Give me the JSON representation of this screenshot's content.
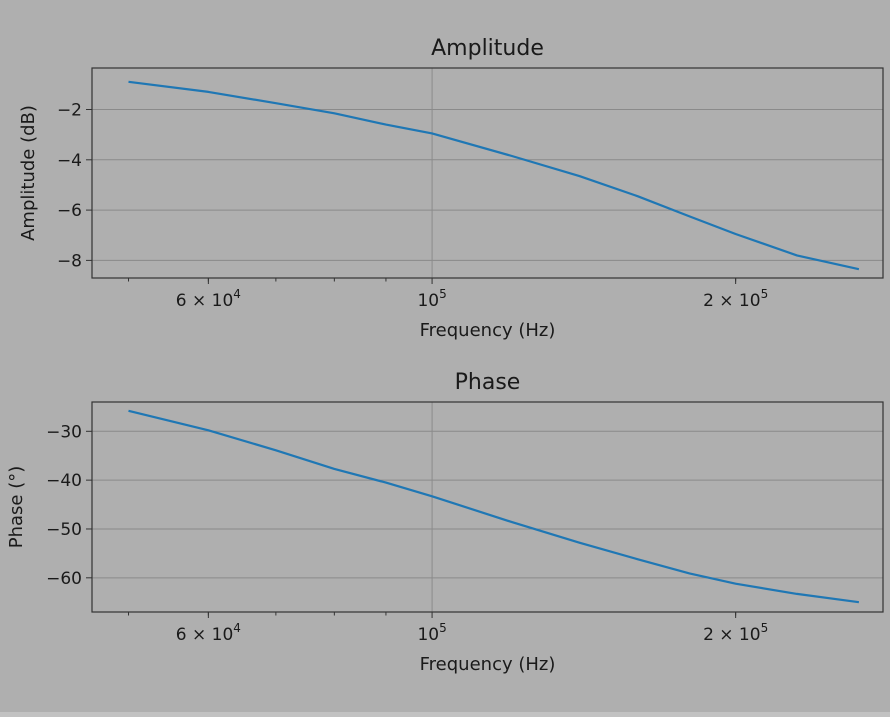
{
  "chart_data": [
    {
      "type": "line",
      "title": "Amplitude",
      "xlabel": "Frequency (Hz)",
      "ylabel": "Amplitude (dB)",
      "xscale": "log",
      "xlim": [
        46000,
        280000
      ],
      "ylim": [
        -8.7,
        -0.35
      ],
      "grid": true,
      "xticks": [
        {
          "value": 60000,
          "base": "6 × 10",
          "exp": "4"
        },
        {
          "value": 100000,
          "base": "10",
          "exp": "5"
        },
        {
          "value": 200000,
          "base": "2 × 10",
          "exp": "5"
        }
      ],
      "yticks": [
        -2,
        -4,
        -6,
        -8
      ],
      "series": [
        {
          "color": "#1f77b4",
          "x": [
            50000,
            60000,
            70000,
            80000,
            90000,
            100000,
            120000,
            140000,
            160000,
            180000,
            200000,
            230000,
            265000
          ],
          "y": [
            -0.9,
            -1.3,
            -1.75,
            -2.15,
            -2.6,
            -2.95,
            -3.85,
            -4.65,
            -5.45,
            -6.25,
            -6.95,
            -7.8,
            -8.35
          ]
        }
      ]
    },
    {
      "type": "line",
      "title": "Phase",
      "xlabel": "Frequency (Hz)",
      "ylabel": "Phase (°)",
      "xscale": "log",
      "xlim": [
        46000,
        280000
      ],
      "ylim": [
        -67,
        -24
      ],
      "grid": true,
      "xticks": [
        {
          "value": 60000,
          "base": "6 × 10",
          "exp": "4"
        },
        {
          "value": 100000,
          "base": "10",
          "exp": "5"
        },
        {
          "value": 200000,
          "base": "2 × 10",
          "exp": "5"
        }
      ],
      "yticks": [
        -30,
        -40,
        -50,
        -60
      ],
      "series": [
        {
          "color": "#1f77b4",
          "x": [
            50000,
            60000,
            70000,
            80000,
            90000,
            100000,
            120000,
            140000,
            160000,
            180000,
            200000,
            230000,
            265000
          ],
          "y": [
            -25.8,
            -29.8,
            -33.9,
            -37.7,
            -40.5,
            -43.3,
            -48.6,
            -52.8,
            -56.2,
            -59.1,
            -61.2,
            -63.3,
            -65.0
          ]
        }
      ]
    }
  ]
}
